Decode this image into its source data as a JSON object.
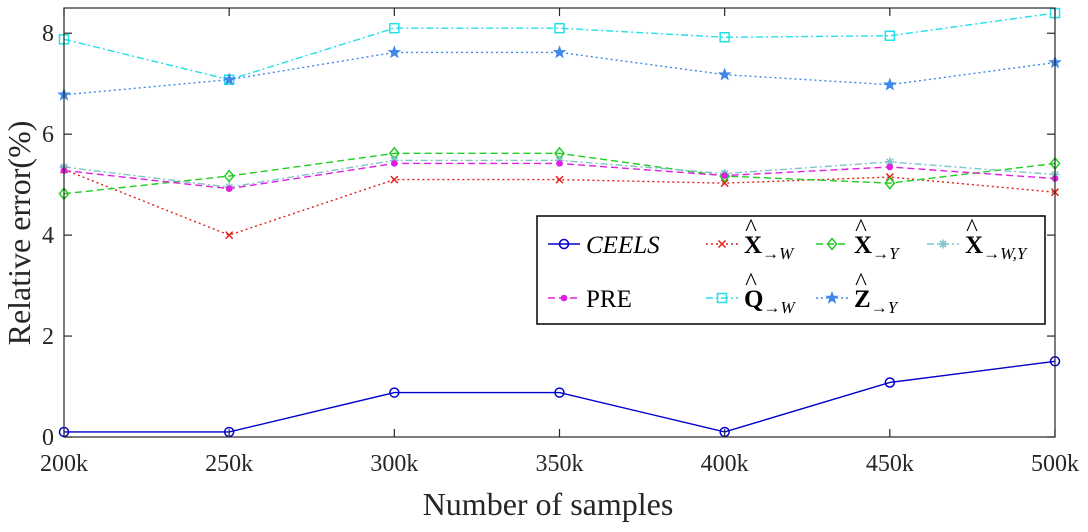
{
  "chart_data": {
    "type": "line",
    "xlabel": "Number of samples",
    "ylabel": "Relative error(%)",
    "categories": [
      "200k",
      "250k",
      "300k",
      "350k",
      "400k",
      "450k",
      "500k"
    ],
    "ylim": [
      0,
      8.5
    ],
    "yticks": [
      0,
      2,
      4,
      6,
      8
    ],
    "grid": false,
    "legend_position": "center-right",
    "series": [
      {
        "name": "CEELS",
        "color": "#0000cc",
        "dash": "solid",
        "marker": "circle",
        "values": [
          0.1,
          0.1,
          0.88,
          0.88,
          0.1,
          1.08,
          1.5
        ]
      },
      {
        "name": "X→W",
        "color": "#e0201c",
        "dash": "dotted",
        "marker": "x",
        "values": [
          5.3,
          4.0,
          5.1,
          5.1,
          5.03,
          5.15,
          4.85
        ]
      },
      {
        "name": "X→Y",
        "color": "#22cc22",
        "dash": "dashed",
        "marker": "diamond",
        "values": [
          4.82,
          5.17,
          5.62,
          5.62,
          5.17,
          5.03,
          5.42
        ]
      },
      {
        "name": "X→W,Y",
        "color": "#80c4c8",
        "dash": "dashdot",
        "marker": "asterisk",
        "values": [
          5.35,
          4.95,
          5.48,
          5.48,
          5.22,
          5.45,
          5.2
        ]
      },
      {
        "name": "PRE",
        "color": "#e020e0",
        "dash": "dashed",
        "marker": "dot",
        "values": [
          5.28,
          4.92,
          5.42,
          5.42,
          5.18,
          5.35,
          5.12
        ]
      },
      {
        "name": "Q→W",
        "color": "#22e0e8",
        "dash": "dashdot",
        "marker": "square",
        "values": [
          7.88,
          7.08,
          8.1,
          8.1,
          7.92,
          7.95,
          8.4
        ]
      },
      {
        "name": "Z→Y",
        "color": "#4088e8",
        "dash": "dotted",
        "marker": "star",
        "values": [
          6.78,
          7.08,
          7.62,
          7.62,
          7.18,
          6.98,
          7.42
        ]
      }
    ]
  }
}
